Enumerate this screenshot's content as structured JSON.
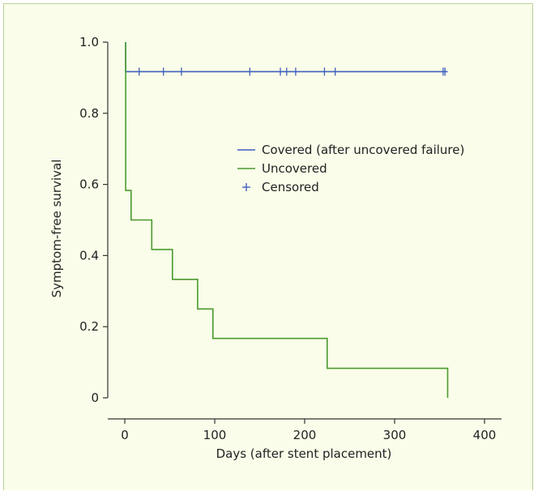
{
  "chart_data": {
    "type": "line",
    "xlabel": "Days (after stent placement)",
    "ylabel": "Symptom-free survival",
    "xlim": [
      -10,
      420
    ],
    "ylim": [
      -0.05,
      1.0
    ],
    "xticks": [
      0,
      100,
      200,
      300,
      400
    ],
    "yticks": [
      0,
      0.2,
      0.4,
      0.6,
      0.8,
      1.0
    ],
    "ytick_labels": [
      "0",
      "0.2",
      "0.4",
      "0.6",
      "0.8",
      "1.0"
    ],
    "legend_position": "center-right",
    "series": [
      {
        "name": "Covered (after uncovered failure)",
        "color": "#3f5fbf",
        "kind": "step",
        "points": [
          [
            1,
            1.0
          ],
          [
            1,
            0.917
          ],
          [
            359,
            0.917
          ]
        ],
        "censored_x": [
          16,
          43,
          63,
          139,
          173,
          180,
          190,
          222,
          234,
          354,
          356
        ]
      },
      {
        "name": "Uncovered",
        "color": "#4a9a2e",
        "kind": "step",
        "points": [
          [
            1,
            1.0
          ],
          [
            1,
            0.583
          ],
          [
            7,
            0.583
          ],
          [
            7,
            0.5
          ],
          [
            30,
            0.5
          ],
          [
            30,
            0.417
          ],
          [
            53,
            0.417
          ],
          [
            53,
            0.333
          ],
          [
            81,
            0.333
          ],
          [
            81,
            0.25
          ],
          [
            98,
            0.25
          ],
          [
            98,
            0.167
          ],
          [
            225,
            0.167
          ],
          [
            225,
            0.083
          ],
          [
            359,
            0.083
          ],
          [
            359,
            0.0
          ]
        ]
      }
    ],
    "legend": [
      {
        "label": "Covered (after uncovered failure)",
        "symbol": "line",
        "color": "#3f5fbf"
      },
      {
        "label": "Uncovered",
        "symbol": "line",
        "color": "#4a9a2e"
      },
      {
        "label": "Censored",
        "symbol": "plus",
        "color": "#3f5fbf"
      }
    ]
  }
}
